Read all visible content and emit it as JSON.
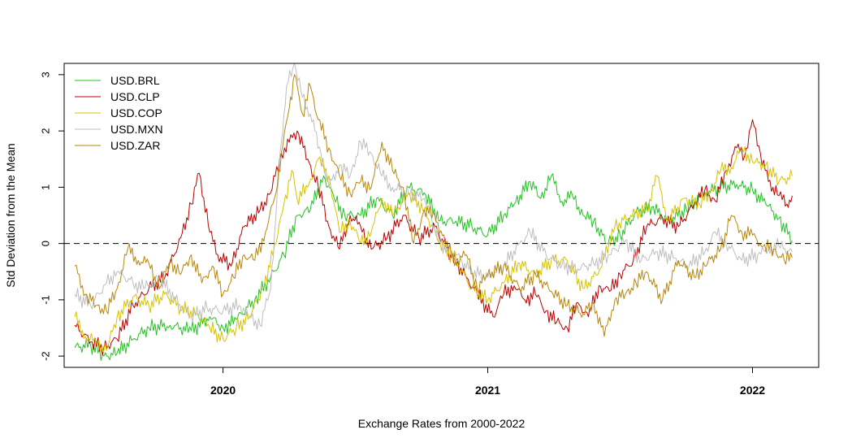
{
  "chart_data": {
    "type": "line",
    "title": "",
    "xlabel": "Exchange Rates from 2000-2022",
    "ylabel": "Std Deviation from the Mean",
    "xlim": [
      2019.4,
      2022.25
    ],
    "ylim": [
      -2.2,
      3.2
    ],
    "x_ticks": [
      {
        "v": 2020,
        "label": "2020"
      },
      {
        "v": 2021,
        "label": "2021"
      },
      {
        "v": 2022,
        "label": "2022"
      }
    ],
    "y_ticks": [
      {
        "v": -2,
        "label": "-2"
      },
      {
        "v": -1,
        "label": "-1"
      },
      {
        "v": 0,
        "label": "0"
      },
      {
        "v": 1,
        "label": "1"
      },
      {
        "v": 2,
        "label": "2"
      },
      {
        "v": 3,
        "label": "3"
      }
    ],
    "reference_line": {
      "y": 0,
      "style": "dashed"
    },
    "legend": {
      "position": "top-left",
      "entries": [
        "USD.BRL",
        "USD.CLP",
        "USD.COP",
        "USD.MXN",
        "USD.ZAR"
      ]
    },
    "series": [
      {
        "name": "USD.BRL",
        "color": "#22c322",
        "points": [
          [
            2019.44,
            -1.85
          ],
          [
            2019.5,
            -1.8
          ],
          [
            2019.55,
            -2.0
          ],
          [
            2019.6,
            -1.95
          ],
          [
            2019.66,
            -1.7
          ],
          [
            2019.72,
            -1.5
          ],
          [
            2019.8,
            -1.45
          ],
          [
            2019.88,
            -1.55
          ],
          [
            2019.95,
            -1.3
          ],
          [
            2020.0,
            -1.5
          ],
          [
            2020.05,
            -1.35
          ],
          [
            2020.12,
            -1.0
          ],
          [
            2020.18,
            -0.6
          ],
          [
            2020.23,
            -0.2
          ],
          [
            2020.28,
            0.5
          ],
          [
            2020.33,
            0.6
          ],
          [
            2020.38,
            1.2
          ],
          [
            2020.42,
            0.8
          ],
          [
            2020.46,
            0.5
          ],
          [
            2020.52,
            0.5
          ],
          [
            2020.58,
            0.8
          ],
          [
            2020.64,
            0.5
          ],
          [
            2020.7,
            1.0
          ],
          [
            2020.76,
            0.9
          ],
          [
            2020.82,
            0.4
          ],
          [
            2020.88,
            0.4
          ],
          [
            2020.94,
            0.3
          ],
          [
            2021.0,
            0.15
          ],
          [
            2021.06,
            0.5
          ],
          [
            2021.1,
            0.7
          ],
          [
            2021.16,
            1.1
          ],
          [
            2021.2,
            0.8
          ],
          [
            2021.24,
            1.2
          ],
          [
            2021.28,
            0.75
          ],
          [
            2021.32,
            0.85
          ],
          [
            2021.36,
            0.5
          ],
          [
            2021.4,
            0.4
          ],
          [
            2021.45,
            0.0
          ],
          [
            2021.5,
            0.15
          ],
          [
            2021.56,
            0.55
          ],
          [
            2021.62,
            0.65
          ],
          [
            2021.68,
            0.4
          ],
          [
            2021.75,
            0.6
          ],
          [
            2021.82,
            0.9
          ],
          [
            2021.88,
            1.0
          ],
          [
            2021.94,
            1.05
          ],
          [
            2022.0,
            0.95
          ],
          [
            2022.05,
            0.7
          ],
          [
            2022.1,
            0.45
          ],
          [
            2022.15,
            0.05
          ]
        ]
      },
      {
        "name": "USD.CLP",
        "color": "#b80000",
        "points": [
          [
            2019.44,
            -1.45
          ],
          [
            2019.5,
            -1.75
          ],
          [
            2019.55,
            -1.85
          ],
          [
            2019.6,
            -1.7
          ],
          [
            2019.66,
            -1.1
          ],
          [
            2019.72,
            -0.8
          ],
          [
            2019.78,
            -0.6
          ],
          [
            2019.84,
            0.1
          ],
          [
            2019.88,
            0.7
          ],
          [
            2019.91,
            1.25
          ],
          [
            2019.95,
            0.2
          ],
          [
            2019.98,
            -0.2
          ],
          [
            2020.03,
            -0.4
          ],
          [
            2020.08,
            0.3
          ],
          [
            2020.14,
            0.6
          ],
          [
            2020.18,
            0.9
          ],
          [
            2020.22,
            1.6
          ],
          [
            2020.25,
            1.8
          ],
          [
            2020.28,
            2.0
          ],
          [
            2020.32,
            1.5
          ],
          [
            2020.36,
            1.0
          ],
          [
            2020.4,
            0.3
          ],
          [
            2020.44,
            -0.1
          ],
          [
            2020.48,
            0.5
          ],
          [
            2020.52,
            0.3
          ],
          [
            2020.56,
            -0.1
          ],
          [
            2020.62,
            0.1
          ],
          [
            2020.68,
            0.5
          ],
          [
            2020.74,
            0.1
          ],
          [
            2020.8,
            0.3
          ],
          [
            2020.86,
            -0.2
          ],
          [
            2020.92,
            -0.6
          ],
          [
            2020.96,
            -0.9
          ],
          [
            2021.02,
            -1.3
          ],
          [
            2021.06,
            -0.9
          ],
          [
            2021.1,
            -0.75
          ],
          [
            2021.14,
            -1.0
          ],
          [
            2021.18,
            -0.9
          ],
          [
            2021.22,
            -1.2
          ],
          [
            2021.26,
            -1.4
          ],
          [
            2021.3,
            -1.5
          ],
          [
            2021.34,
            -1.05
          ],
          [
            2021.38,
            -1.3
          ],
          [
            2021.42,
            -0.75
          ],
          [
            2021.46,
            -0.85
          ],
          [
            2021.5,
            -0.55
          ],
          [
            2021.55,
            -0.3
          ],
          [
            2021.6,
            0.3
          ],
          [
            2021.66,
            0.45
          ],
          [
            2021.72,
            0.3
          ],
          [
            2021.78,
            0.7
          ],
          [
            2021.82,
            0.95
          ],
          [
            2021.86,
            0.75
          ],
          [
            2021.9,
            1.3
          ],
          [
            2021.94,
            1.7
          ],
          [
            2021.97,
            1.55
          ],
          [
            2022.0,
            2.2
          ],
          [
            2022.03,
            1.6
          ],
          [
            2022.06,
            1.1
          ],
          [
            2022.1,
            0.85
          ],
          [
            2022.13,
            0.7
          ],
          [
            2022.15,
            0.85
          ]
        ]
      },
      {
        "name": "USD.COP",
        "color": "#d6c200",
        "points": [
          [
            2019.44,
            -1.3
          ],
          [
            2019.48,
            -1.65
          ],
          [
            2019.52,
            -1.75
          ],
          [
            2019.56,
            -1.9
          ],
          [
            2019.6,
            -1.3
          ],
          [
            2019.66,
            -0.95
          ],
          [
            2019.72,
            -1.1
          ],
          [
            2019.78,
            -0.9
          ],
          [
            2019.84,
            -1.15
          ],
          [
            2019.9,
            -1.25
          ],
          [
            2019.95,
            -1.5
          ],
          [
            2020.0,
            -1.7
          ],
          [
            2020.05,
            -1.5
          ],
          [
            2020.1,
            -1.3
          ],
          [
            2020.15,
            -0.8
          ],
          [
            2020.2,
            0.0
          ],
          [
            2020.23,
            0.7
          ],
          [
            2020.26,
            1.3
          ],
          [
            2020.28,
            0.8
          ],
          [
            2020.32,
            1.0
          ],
          [
            2020.36,
            1.5
          ],
          [
            2020.4,
            1.2
          ],
          [
            2020.44,
            0.2
          ],
          [
            2020.48,
            0.4
          ],
          [
            2020.52,
            0.0
          ],
          [
            2020.56,
            0.2
          ],
          [
            2020.6,
            0.8
          ],
          [
            2020.64,
            0.5
          ],
          [
            2020.7,
            0.9
          ],
          [
            2020.76,
            0.6
          ],
          [
            2020.82,
            0.0
          ],
          [
            2020.88,
            -0.3
          ],
          [
            2020.94,
            -0.8
          ],
          [
            2021.0,
            -1.0
          ],
          [
            2021.06,
            -0.7
          ],
          [
            2021.12,
            -0.35
          ],
          [
            2021.18,
            -0.55
          ],
          [
            2021.24,
            -0.3
          ],
          [
            2021.3,
            -0.3
          ],
          [
            2021.36,
            -0.8
          ],
          [
            2021.42,
            -0.5
          ],
          [
            2021.48,
            0.3
          ],
          [
            2021.54,
            0.5
          ],
          [
            2021.6,
            0.6
          ],
          [
            2021.64,
            1.2
          ],
          [
            2021.68,
            0.4
          ],
          [
            2021.74,
            0.8
          ],
          [
            2021.8,
            0.7
          ],
          [
            2021.84,
            0.9
          ],
          [
            2021.88,
            1.3
          ],
          [
            2021.92,
            1.35
          ],
          [
            2021.96,
            1.7
          ],
          [
            2022.0,
            1.45
          ],
          [
            2022.05,
            1.4
          ],
          [
            2022.1,
            1.1
          ],
          [
            2022.15,
            1.2
          ]
        ]
      },
      {
        "name": "USD.MXN",
        "color": "#bebebe",
        "points": [
          [
            2019.44,
            -0.9
          ],
          [
            2019.5,
            -1.1
          ],
          [
            2019.56,
            -0.7
          ],
          [
            2019.6,
            -0.5
          ],
          [
            2019.66,
            -0.7
          ],
          [
            2019.7,
            -0.8
          ],
          [
            2019.76,
            -0.6
          ],
          [
            2019.82,
            -1.0
          ],
          [
            2019.88,
            -1.3
          ],
          [
            2019.94,
            -1.15
          ],
          [
            2020.0,
            -1.2
          ],
          [
            2020.06,
            -1.1
          ],
          [
            2020.1,
            -1.3
          ],
          [
            2020.14,
            -1.45
          ],
          [
            2020.18,
            -0.8
          ],
          [
            2020.2,
            0.5
          ],
          [
            2020.22,
            1.8
          ],
          [
            2020.24,
            2.8
          ],
          [
            2020.27,
            3.2
          ],
          [
            2020.3,
            2.6
          ],
          [
            2020.33,
            2.3
          ],
          [
            2020.37,
            1.6
          ],
          [
            2020.4,
            1.0
          ],
          [
            2020.44,
            1.4
          ],
          [
            2020.48,
            1.2
          ],
          [
            2020.52,
            1.8
          ],
          [
            2020.56,
            1.6
          ],
          [
            2020.6,
            1.2
          ],
          [
            2020.64,
            1.0
          ],
          [
            2020.7,
            0.9
          ],
          [
            2020.76,
            0.8
          ],
          [
            2020.82,
            0.0
          ],
          [
            2020.88,
            -0.2
          ],
          [
            2020.94,
            -0.5
          ],
          [
            2021.0,
            -0.6
          ],
          [
            2021.06,
            -0.4
          ],
          [
            2021.12,
            0.0
          ],
          [
            2021.16,
            0.2
          ],
          [
            2021.22,
            -0.2
          ],
          [
            2021.28,
            -0.4
          ],
          [
            2021.34,
            -0.45
          ],
          [
            2021.4,
            -0.35
          ],
          [
            2021.46,
            -0.2
          ],
          [
            2021.52,
            0.05
          ],
          [
            2021.58,
            -0.3
          ],
          [
            2021.64,
            -0.15
          ],
          [
            2021.7,
            -0.25
          ],
          [
            2021.76,
            -0.4
          ],
          [
            2021.82,
            -0.15
          ],
          [
            2021.86,
            0.2
          ],
          [
            2021.9,
            0.0
          ],
          [
            2021.96,
            -0.3
          ],
          [
            2022.02,
            -0.2
          ],
          [
            2022.06,
            -0.1
          ],
          [
            2022.1,
            -0.05
          ],
          [
            2022.15,
            -0.15
          ]
        ]
      },
      {
        "name": "USD.ZAR",
        "color": "#b8860b",
        "points": [
          [
            2019.44,
            -0.4
          ],
          [
            2019.48,
            -0.9
          ],
          [
            2019.52,
            -1.1
          ],
          [
            2019.56,
            -1.2
          ],
          [
            2019.6,
            -0.8
          ],
          [
            2019.64,
            -0.1
          ],
          [
            2019.68,
            -0.3
          ],
          [
            2019.72,
            -0.35
          ],
          [
            2019.76,
            -0.8
          ],
          [
            2019.8,
            -0.3
          ],
          [
            2019.84,
            -0.55
          ],
          [
            2019.88,
            -0.2
          ],
          [
            2019.92,
            -0.7
          ],
          [
            2019.96,
            -0.4
          ],
          [
            2020.0,
            -0.9
          ],
          [
            2020.04,
            -0.6
          ],
          [
            2020.08,
            -0.2
          ],
          [
            2020.12,
            -0.3
          ],
          [
            2020.16,
            0.2
          ],
          [
            2020.2,
            0.9
          ],
          [
            2020.22,
            1.6
          ],
          [
            2020.25,
            2.4
          ],
          [
            2020.27,
            3.0
          ],
          [
            2020.3,
            2.3
          ],
          [
            2020.33,
            2.8
          ],
          [
            2020.36,
            2.2
          ],
          [
            2020.4,
            1.7
          ],
          [
            2020.44,
            1.2
          ],
          [
            2020.48,
            0.9
          ],
          [
            2020.52,
            1.1
          ],
          [
            2020.56,
            1.0
          ],
          [
            2020.6,
            1.8
          ],
          [
            2020.64,
            1.3
          ],
          [
            2020.68,
            1.0
          ],
          [
            2020.72,
            0.0
          ],
          [
            2020.76,
            0.6
          ],
          [
            2020.8,
            0.5
          ],
          [
            2020.84,
            0.0
          ],
          [
            2020.88,
            -0.3
          ],
          [
            2020.92,
            -0.2
          ],
          [
            2020.96,
            -0.8
          ],
          [
            2021.0,
            -0.55
          ],
          [
            2021.06,
            -0.4
          ],
          [
            2021.12,
            -0.8
          ],
          [
            2021.18,
            -0.55
          ],
          [
            2021.24,
            -0.85
          ],
          [
            2021.3,
            -1.1
          ],
          [
            2021.36,
            -1.25
          ],
          [
            2021.4,
            -1.05
          ],
          [
            2021.44,
            -1.65
          ],
          [
            2021.48,
            -1.0
          ],
          [
            2021.52,
            -0.9
          ],
          [
            2021.56,
            -0.7
          ],
          [
            2021.6,
            -0.5
          ],
          [
            2021.66,
            -1.0
          ],
          [
            2021.72,
            -0.3
          ],
          [
            2021.78,
            -0.6
          ],
          [
            2021.82,
            -0.4
          ],
          [
            2021.88,
            -0.1
          ],
          [
            2021.92,
            0.5
          ],
          [
            2021.96,
            0.2
          ],
          [
            2022.0,
            0.15
          ],
          [
            2022.04,
            -0.05
          ],
          [
            2022.08,
            -0.1
          ],
          [
            2022.12,
            -0.3
          ],
          [
            2022.15,
            -0.25
          ]
        ]
      }
    ]
  }
}
